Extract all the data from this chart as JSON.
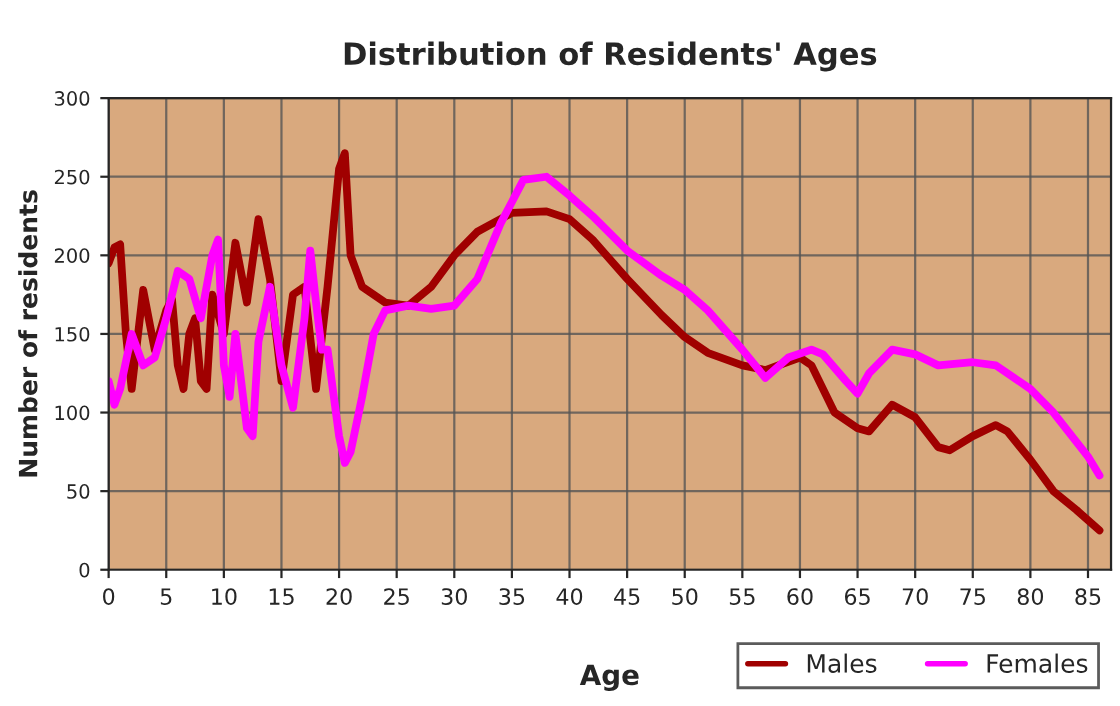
{
  "chart_data": {
    "type": "line",
    "title": "Distribution of Residents' Ages",
    "xlabel": "Age",
    "ylabel": "Number of residents",
    "xlim": [
      0,
      87
    ],
    "xticks": [
      0,
      5,
      10,
      15,
      20,
      25,
      30,
      35,
      40,
      45,
      50,
      55,
      60,
      65,
      70,
      75,
      80,
      85
    ],
    "ylim": [
      0,
      300
    ],
    "yticks": [
      0,
      50,
      100,
      150,
      200,
      250,
      300
    ],
    "grid": true,
    "legend": "bottom right",
    "line_style": "solid",
    "series": [
      {
        "name": "Males",
        "color": "#a00000",
        "x": [
          0,
          0.5,
          1,
          1.5,
          2,
          3,
          4,
          5,
          5.5,
          6,
          6.5,
          7,
          7.5,
          8,
          8.5,
          9,
          10,
          11,
          12,
          13,
          14,
          15,
          16,
          17,
          18,
          19,
          20,
          20.5,
          21,
          22,
          24,
          26,
          28,
          30,
          32,
          35,
          38,
          40,
          42,
          45,
          48,
          50,
          52,
          55,
          57,
          60,
          61,
          63,
          65,
          66,
          68,
          70,
          72,
          73,
          75,
          77,
          78,
          80,
          82,
          84,
          86
        ],
        "values": [
          195,
          205,
          207,
          150,
          115,
          178,
          140,
          165,
          172,
          130,
          115,
          150,
          160,
          120,
          115,
          175,
          150,
          208,
          170,
          223,
          185,
          120,
          175,
          180,
          115,
          180,
          255,
          265,
          200,
          180,
          170,
          168,
          180,
          200,
          215,
          227,
          228,
          223,
          210,
          185,
          162,
          148,
          138,
          130,
          127,
          135,
          130,
          100,
          90,
          88,
          105,
          97,
          78,
          76,
          85,
          92,
          88,
          70,
          50,
          38,
          25
        ]
      },
      {
        "name": "Females",
        "color": "#ff00ff",
        "x": [
          0,
          0.5,
          1,
          2,
          3,
          4,
          5,
          6,
          7,
          8,
          9,
          9.5,
          10,
          10.5,
          11,
          12,
          12.5,
          13,
          14,
          15,
          16,
          17,
          17.5,
          18,
          18.5,
          19,
          20,
          20.5,
          21,
          22,
          23,
          24,
          26,
          28,
          30,
          32,
          34,
          36,
          38,
          40,
          42,
          45,
          48,
          50,
          52,
          55,
          57,
          59,
          61,
          62,
          64,
          65,
          66,
          68,
          70,
          72,
          75,
          77,
          80,
          82,
          85,
          86
        ],
        "values": [
          120,
          105,
          115,
          150,
          130,
          135,
          160,
          190,
          185,
          160,
          200,
          210,
          130,
          110,
          150,
          90,
          85,
          145,
          180,
          130,
          103,
          160,
          203,
          170,
          140,
          140,
          85,
          68,
          75,
          110,
          150,
          165,
          168,
          166,
          168,
          185,
          220,
          248,
          250,
          238,
          225,
          203,
          187,
          178,
          165,
          140,
          122,
          135,
          140,
          137,
          120,
          112,
          125,
          140,
          137,
          130,
          132,
          130,
          115,
          100,
          72,
          60
        ]
      }
    ]
  }
}
